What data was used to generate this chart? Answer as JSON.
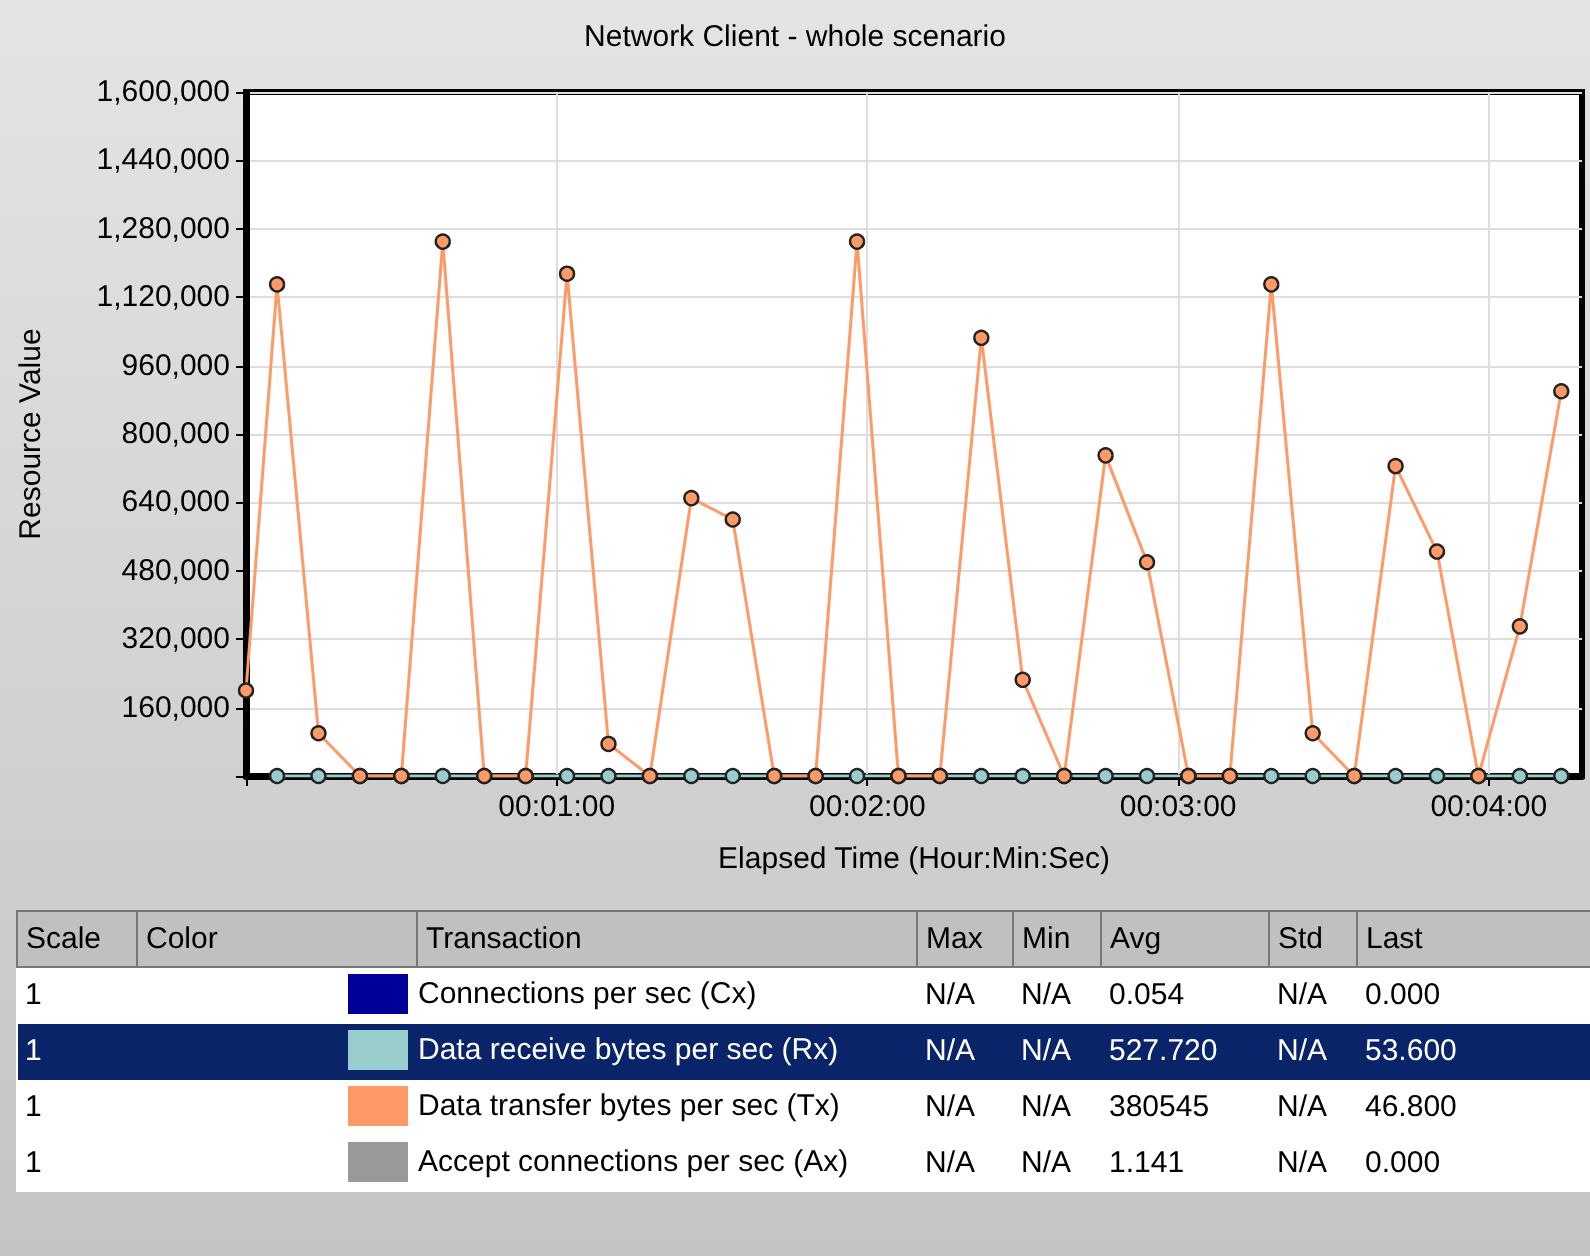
{
  "chart_data": {
    "type": "line",
    "title": "Network Client - whole scenario",
    "xlabel": "Elapsed Time (Hour:Min:Sec)",
    "ylabel": "Resource Value",
    "x": [
      0,
      6,
      14,
      22,
      30,
      38,
      46,
      54,
      62,
      70,
      78,
      86,
      94,
      102,
      110,
      118,
      126,
      134,
      142,
      150,
      158,
      166,
      174,
      182,
      190,
      198,
      206,
      214,
      222,
      230,
      238,
      246,
      254
    ],
    "series": [
      {
        "name": "Connections per sec (Cx)",
        "color": "#000099",
        "values": [
          null,
          null,
          null,
          null,
          null,
          null,
          null,
          null,
          null,
          null,
          null,
          null,
          null,
          null,
          null,
          null,
          null,
          null,
          null,
          null,
          null,
          null,
          null,
          null,
          null,
          null,
          null,
          null,
          null,
          null,
          null,
          null,
          null
        ]
      },
      {
        "name": "Accept connections per sec (Ax)",
        "color": "#999999",
        "values": [
          null,
          null,
          null,
          null,
          null,
          null,
          null,
          null,
          null,
          null,
          null,
          null,
          null,
          null,
          null,
          null,
          null,
          null,
          null,
          null,
          null,
          null,
          null,
          null,
          null,
          null,
          null,
          null,
          null,
          null,
          null,
          null,
          null
        ]
      },
      {
        "name": "Data receive bytes per sec (Rx)",
        "color": "#99cccc",
        "values": [
          null,
          0,
          0,
          0,
          0,
          0,
          0,
          0,
          0,
          0,
          0,
          0,
          0,
          0,
          0,
          0,
          0,
          0,
          0,
          0,
          0,
          0,
          0,
          0,
          0,
          0,
          0,
          0,
          0,
          0,
          0,
          0,
          0
        ]
      },
      {
        "name": "Data transfer bytes per sec (Tx)",
        "color": "#ff9966",
        "values": [
          200000,
          1150000,
          100000,
          0,
          0,
          1250000,
          0,
          0,
          1175000,
          75000,
          0,
          650000,
          600000,
          0,
          0,
          1250000,
          0,
          0,
          1025000,
          225000,
          0,
          750000,
          500000,
          0,
          0,
          1150000,
          100000,
          0,
          725000,
          525000,
          0,
          350000,
          900000
        ]
      }
    ],
    "xlim": [
      0,
      258
    ],
    "xticks": [
      {
        "value": 0,
        "label": null
      },
      {
        "value": 60,
        "label": "00:01:00"
      },
      {
        "value": 120,
        "label": "00:02:00"
      },
      {
        "value": 180,
        "label": "00:03:00"
      },
      {
        "value": 240,
        "label": "00:04:00"
      }
    ],
    "ylim": [
      0,
      1600000
    ],
    "yticks": [
      {
        "value": 0,
        "label": null
      },
      {
        "value": 160000,
        "label": "160,000"
      },
      {
        "value": 320000,
        "label": "320,000"
      },
      {
        "value": 480000,
        "label": "480,000"
      },
      {
        "value": 640000,
        "label": "640,000"
      },
      {
        "value": 800000,
        "label": "800,000"
      },
      {
        "value": 960000,
        "label": "960,000"
      },
      {
        "value": 1120000,
        "label": "1,120,000"
      },
      {
        "value": 1280000,
        "label": "1,280,000"
      },
      {
        "value": 1440000,
        "label": "1,440,000"
      },
      {
        "value": 1600000,
        "label": "1,600,000"
      }
    ],
    "grid": true,
    "marker": "circle",
    "line_style": "solid",
    "legend": "bottom",
    "annotations": [
      "Scale",
      "Color",
      "Transaction",
      "Max",
      "Min",
      "Avg",
      "Std",
      "Last",
      "1",
      "N/A",
      "N/A",
      "0.054",
      "N/A",
      "0.000",
      "1",
      "N/A",
      "N/A",
      "1.141",
      "N/A",
      "0.000",
      "1",
      "N/A",
      "N/A",
      "527.720",
      "N/A",
      "53.600",
      "1",
      "N/A",
      "N/A",
      "380545",
      "N/A",
      "46.800"
    ]
  }
}
